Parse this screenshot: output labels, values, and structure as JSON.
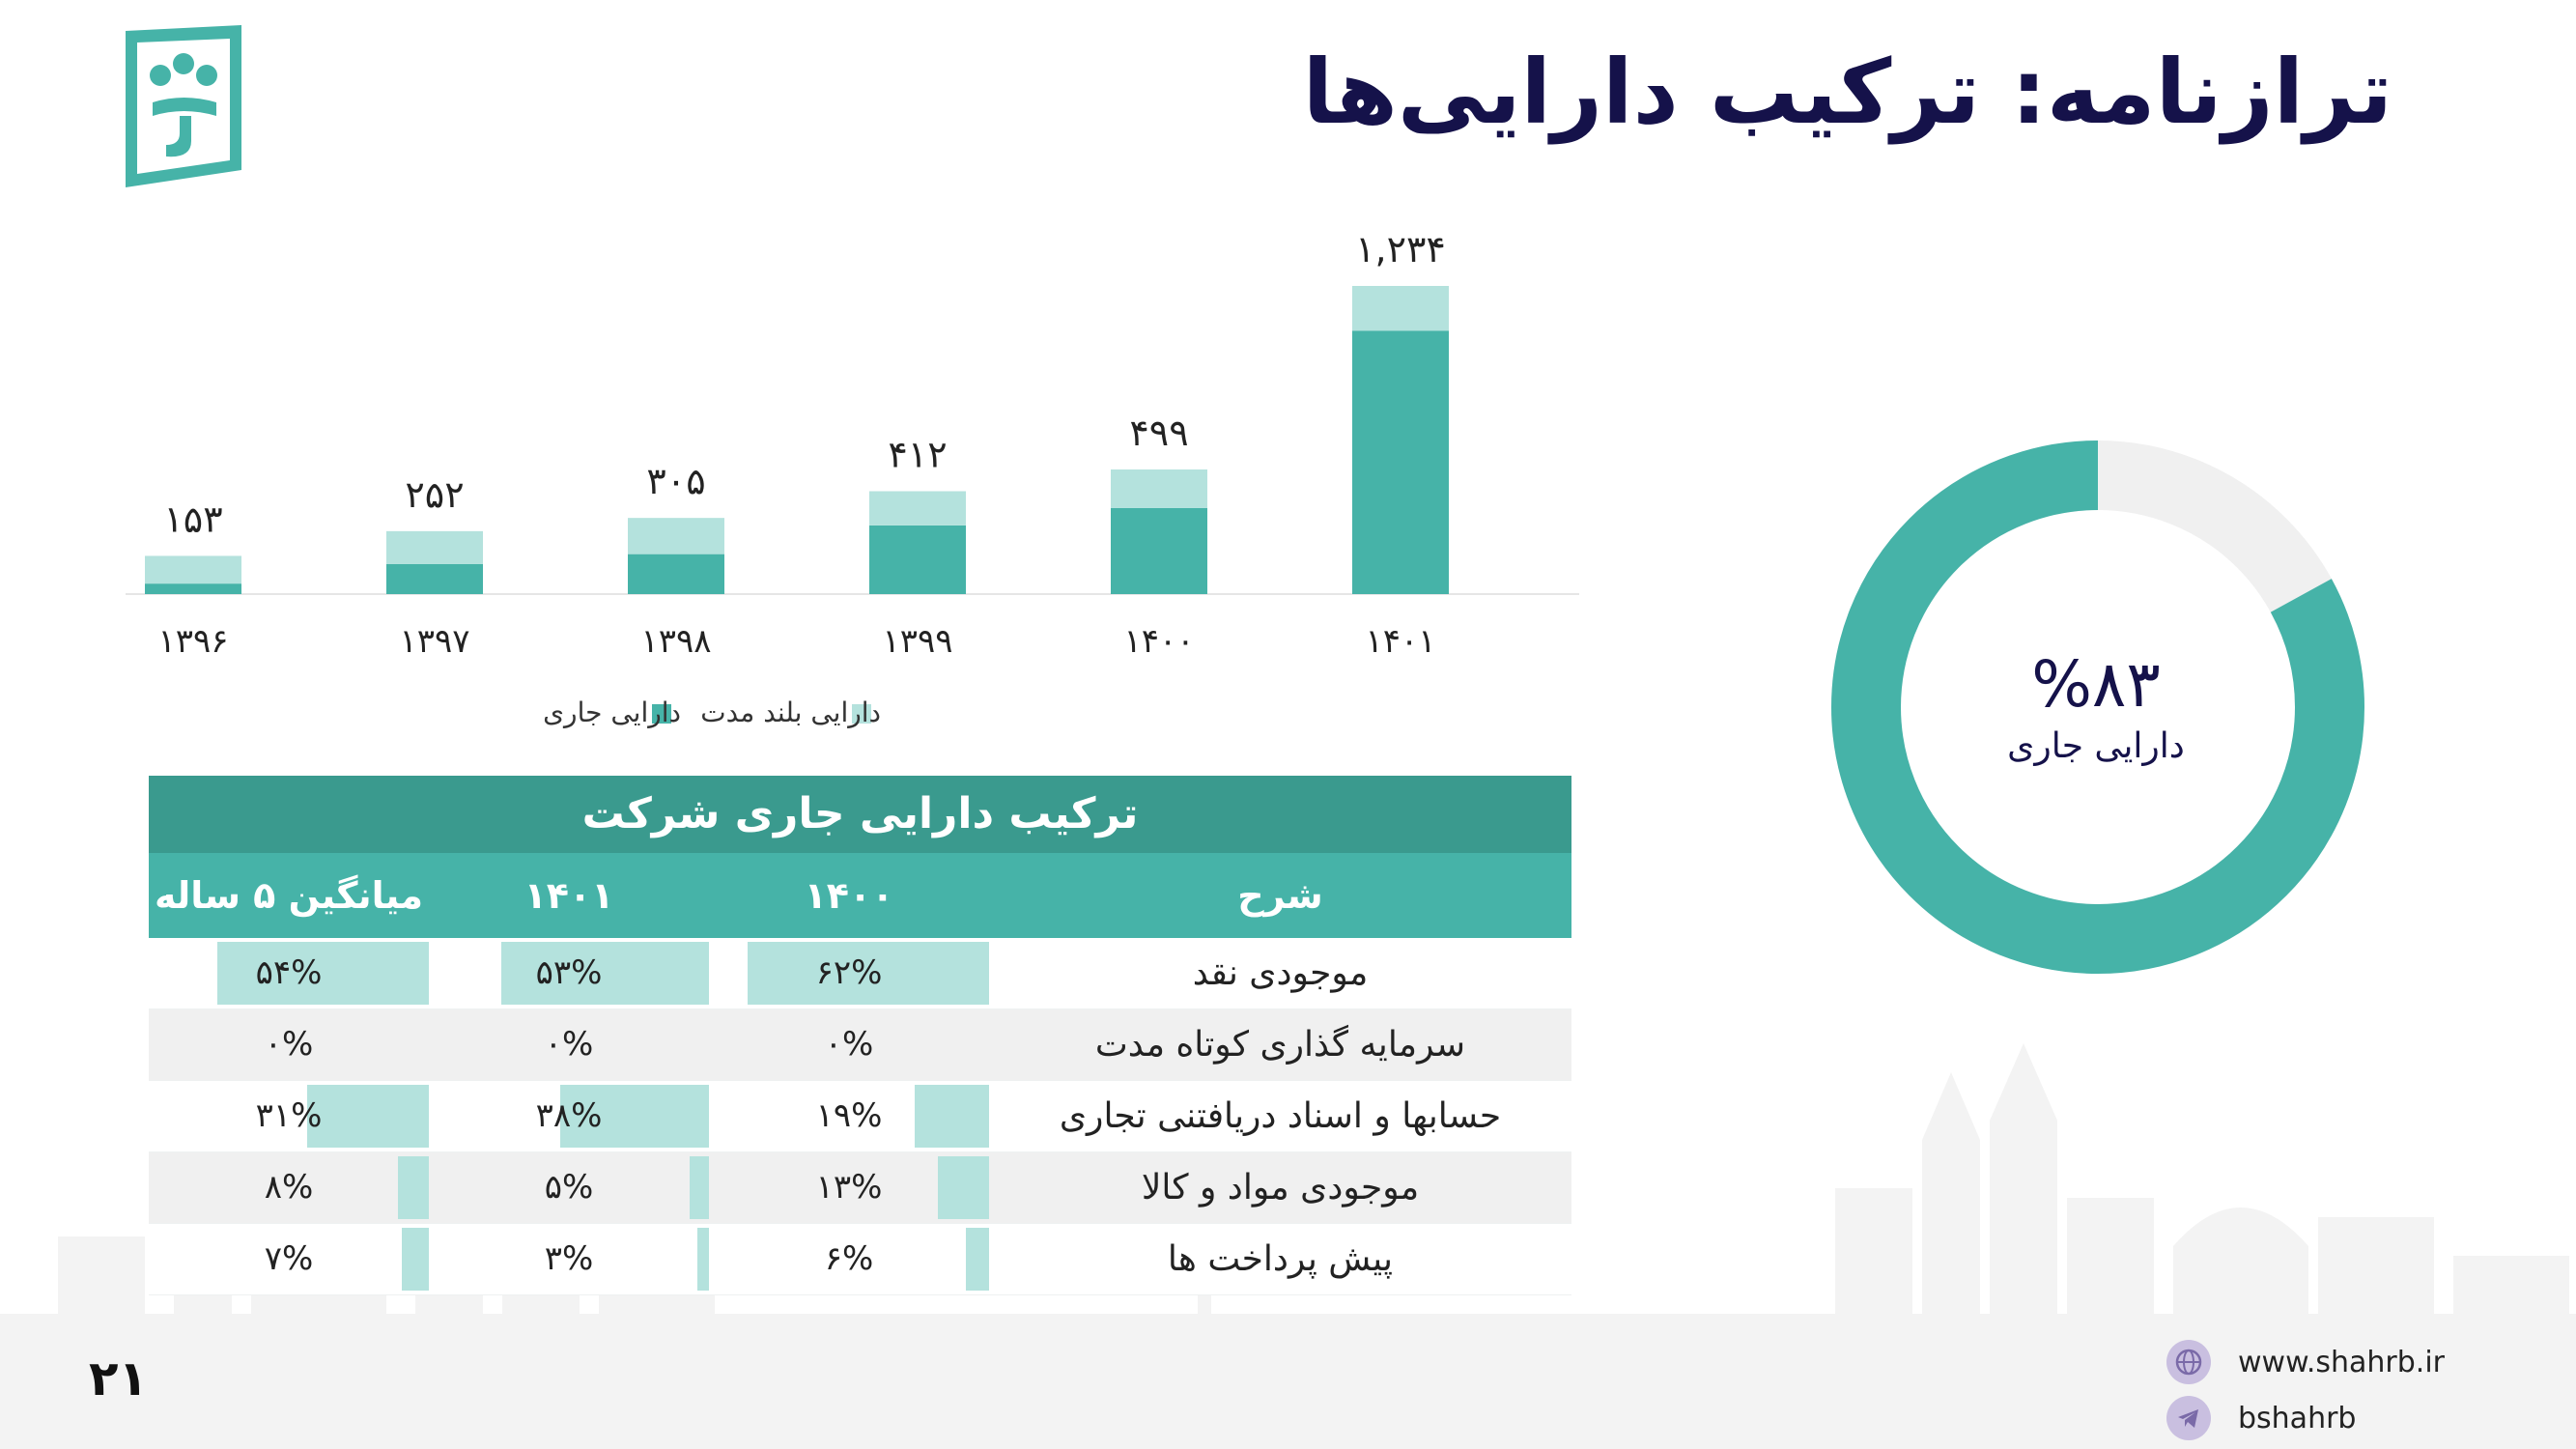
{
  "page_title": "ترازنامه: ترکیب دارایی‌ها",
  "page_number": "۲۱",
  "contact": {
    "website": "www.shahrb.ir",
    "telegram": "bshahrb"
  },
  "colors": {
    "current": "#46b3a8",
    "long_term": "#b4e2dd",
    "navy": "#15124a",
    "header_dark": "#3a9a8e"
  },
  "chart_data": [
    {
      "type": "bar",
      "stacked": true,
      "categories": [
        "۱۳۹۶",
        "۱۳۹۷",
        "۱۳۹۸",
        "۱۳۹۹",
        "۱۴۰۰",
        "۱۴۰۱"
      ],
      "totals": [
        153,
        252,
        305,
        412,
        499,
        1234
      ],
      "total_labels": [
        "۱۵۳",
        "۲۵۲",
        "۳۰۵",
        "۴۱۲",
        "۴۹۹",
        "۱,۲۳۴"
      ],
      "series": [
        {
          "name": "دارایی جاری",
          "values": [
            42,
            120,
            160,
            275,
            345,
            1055
          ],
          "color": "#46b3a8"
        },
        {
          "name": "دارایی بلند مدت",
          "values": [
            111,
            132,
            145,
            137,
            154,
            179
          ],
          "color": "#b4e2dd"
        }
      ],
      "legend": "bottom",
      "grid": false
    },
    {
      "type": "pie",
      "donut": true,
      "center_value": "%۸۳",
      "center_label": "دارایی جاری",
      "slices": [
        {
          "name": "دارایی جاری",
          "value": 83,
          "color": "#46b3a8"
        },
        {
          "name": "دارایی بلند مدت",
          "value": 17,
          "color": "#f0f0f0"
        }
      ]
    },
    {
      "type": "table",
      "title": "ترکیب دارایی جاری شرکت",
      "columns": [
        "شرح",
        "۱۴۰۰",
        "۱۴۰۱",
        "میانگین ۵ ساله"
      ],
      "rows": [
        {
          "label": "موجودی نقد",
          "v1400": "۶۲%",
          "v1401": "۵۳%",
          "avg": "۵۴%",
          "p1400": 62,
          "p1401": 53,
          "pavg": 54
        },
        {
          "label": "سرمایه گذاری کوتاه مدت",
          "v1400": "۰%",
          "v1401": "۰%",
          "avg": "۰%",
          "p1400": 0,
          "p1401": 0,
          "pavg": 0
        },
        {
          "label": "حسابها و اسناد دریافتنی تجاری",
          "v1400": "۱۹%",
          "v1401": "۳۸%",
          "avg": "۳۱%",
          "p1400": 19,
          "p1401": 38,
          "pavg": 31
        },
        {
          "label": "موجودی مواد و کالا",
          "v1400": "۱۳%",
          "v1401": "۵%",
          "avg": "۸%",
          "p1400": 13,
          "p1401": 5,
          "pavg": 8
        },
        {
          "label": "پیش پرداخت ها",
          "v1400": "۶%",
          "v1401": "۳%",
          "avg": "۷%",
          "p1400": 6,
          "p1401": 3,
          "pavg": 7
        }
      ]
    }
  ]
}
